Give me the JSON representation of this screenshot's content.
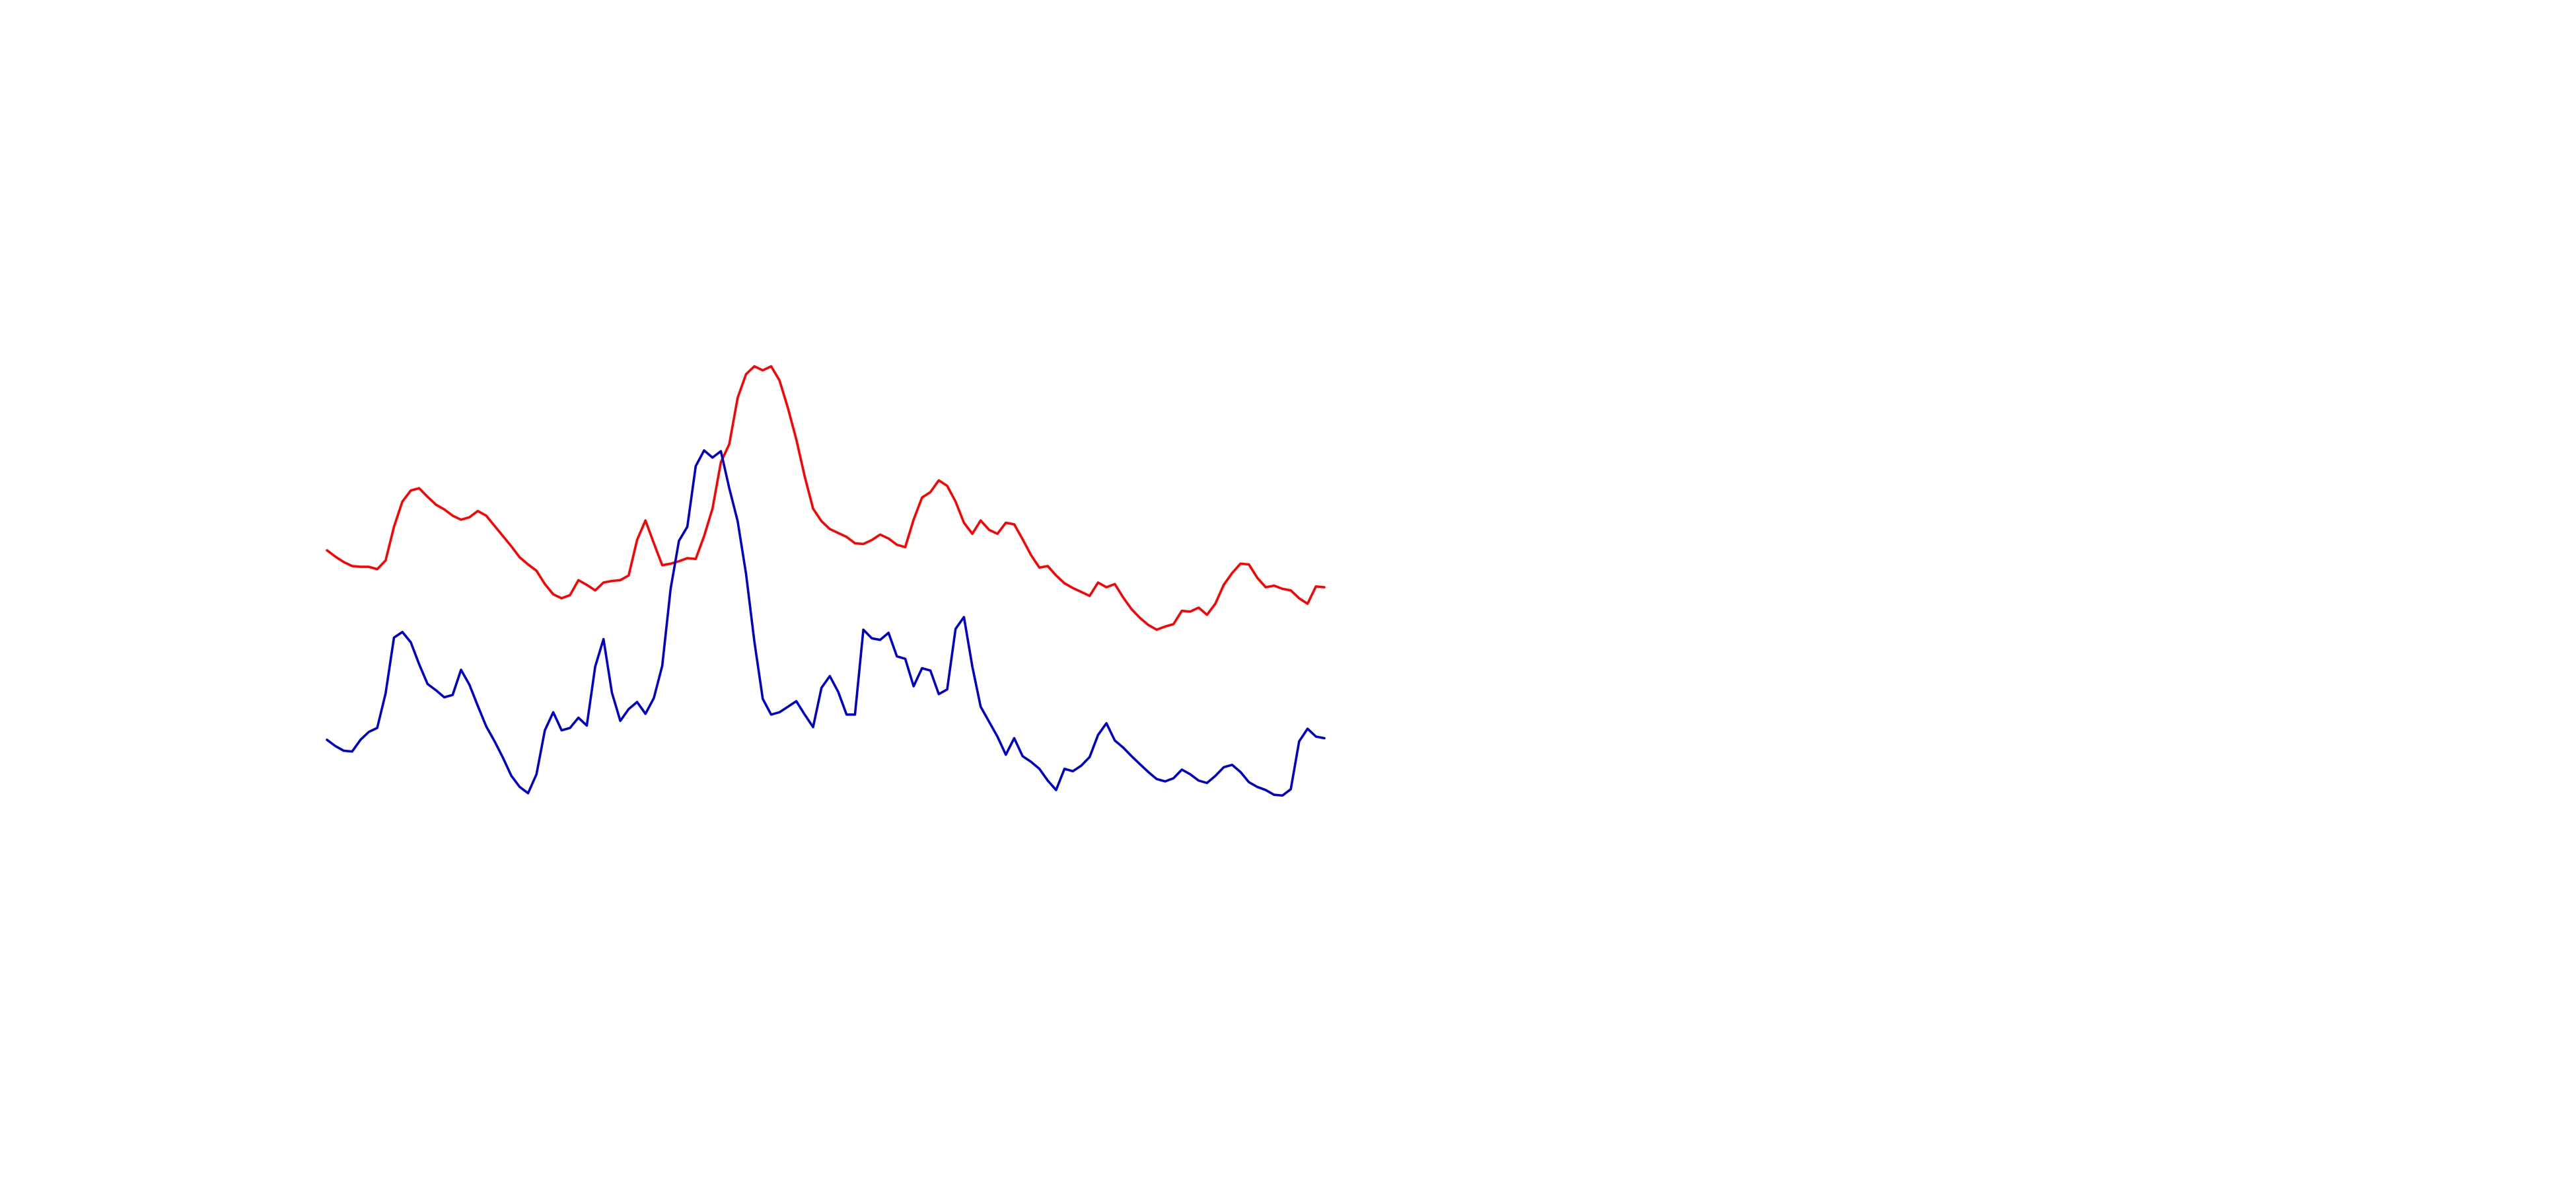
{
  "chart_data": {
    "type": "line",
    "title": "",
    "xlabel": "",
    "ylabel": "",
    "grid": false,
    "legend": "none",
    "xlim": [
      0,
      119
    ],
    "ylim": [
      0,
      100
    ],
    "series": [
      {
        "color": "#ff0000",
        "x": [
          0,
          1,
          2,
          3,
          4,
          5,
          6,
          7,
          8,
          9,
          10,
          11,
          12,
          13,
          14,
          15,
          16,
          17,
          18,
          19,
          20,
          21,
          22,
          23,
          24,
          25,
          26,
          27,
          28,
          29,
          30,
          31,
          32,
          33,
          34,
          35,
          36,
          37,
          38,
          39,
          40,
          41,
          42,
          43,
          44,
          45,
          46,
          47,
          48,
          49,
          50,
          51,
          52,
          53,
          54,
          55,
          56,
          57,
          58,
          59,
          60,
          61,
          62,
          63,
          64,
          65,
          66,
          67,
          68,
          69,
          70,
          71,
          72,
          73,
          74,
          75,
          76,
          77,
          78,
          79,
          80,
          81,
          82,
          83,
          84,
          85,
          86,
          87,
          88,
          89,
          90,
          91,
          92,
          93,
          94,
          95,
          96,
          97,
          98,
          99,
          100,
          101,
          102,
          103,
          104,
          105,
          106,
          107,
          108,
          109,
          110,
          111,
          112,
          113,
          114,
          115,
          116,
          117,
          118,
          119
        ],
        "values": [
          44.7,
          43.9,
          43.2,
          42.7,
          42.6,
          42.6,
          42.3,
          43.4,
          47.7,
          50.9,
          52.3,
          52.6,
          51.5,
          50.5,
          49.9,
          49.1,
          48.6,
          48.9,
          49.7,
          49.1,
          47.8,
          46.5,
          45.2,
          43.8,
          42.9,
          42.1,
          40.4,
          39.1,
          38.6,
          39.0,
          40.9,
          40.3,
          39.6,
          40.6,
          40.8,
          40.9,
          41.5,
          46.0,
          48.5,
          45.6,
          42.8,
          43.0,
          43.3,
          43.7,
          43.6,
          46.5,
          50.0,
          55.9,
          58.2,
          64.1,
          67.1,
          68.1,
          67.6,
          68.1,
          66.3,
          62.8,
          58.8,
          54.1,
          50.0,
          48.4,
          47.4,
          46.9,
          46.4,
          45.6,
          45.5,
          46.0,
          46.7,
          46.2,
          45.4,
          45.1,
          48.6,
          51.4,
          52.1,
          53.6,
          52.9,
          50.9,
          48.2,
          46.8,
          48.5,
          47.3,
          46.8,
          48.2,
          48.0,
          46.1,
          44.1,
          42.5,
          42.7,
          41.5,
          40.5,
          39.9,
          39.4,
          38.9,
          40.6,
          40.0,
          40.4,
          38.7,
          37.2,
          36.1,
          35.2,
          34.6,
          35.0,
          35.3,
          37.0,
          36.9,
          37.4,
          36.5,
          37.9,
          40.3,
          41.8,
          43.0,
          42.9,
          41.2,
          40.0,
          40.2,
          39.8,
          39.6,
          38.6,
          37.9,
          40.1,
          40.0
        ]
      },
      {
        "color": "#0000cc",
        "x": [
          0,
          1,
          2,
          3,
          4,
          5,
          6,
          7,
          8,
          9,
          10,
          11,
          12,
          13,
          14,
          15,
          16,
          17,
          18,
          19,
          20,
          21,
          22,
          23,
          24,
          25,
          26,
          27,
          28,
          29,
          30,
          31,
          32,
          33,
          34,
          35,
          36,
          37,
          38,
          39,
          40,
          41,
          42,
          43,
          44,
          45,
          46,
          47,
          48,
          49,
          50,
          51,
          52,
          53,
          54,
          55,
          56,
          57,
          58,
          59,
          60,
          61,
          62,
          63,
          64,
          65,
          66,
          67,
          68,
          69,
          70,
          71,
          72,
          73,
          74,
          75,
          76,
          77,
          78,
          79,
          80,
          81,
          82,
          83,
          84,
          85,
          86,
          87,
          88,
          89,
          90,
          91,
          92,
          93,
          94,
          95,
          96,
          97,
          98,
          99,
          100,
          101,
          102,
          103,
          104,
          105,
          106,
          107,
          108,
          109,
          110,
          111,
          112,
          113,
          114,
          115,
          116,
          117,
          118,
          119
        ],
        "values": [
          20.6,
          19.8,
          19.2,
          19.1,
          20.6,
          21.6,
          22.1,
          26.5,
          33.6,
          34.3,
          33.0,
          30.2,
          27.7,
          26.9,
          26.0,
          26.3,
          29.5,
          27.6,
          24.9,
          22.3,
          20.4,
          18.3,
          16.0,
          14.6,
          13.8,
          16.2,
          21.8,
          24.1,
          21.8,
          22.1,
          23.4,
          22.4,
          29.9,
          33.4,
          26.6,
          23.0,
          24.5,
          25.4,
          23.9,
          25.9,
          30.0,
          39.8,
          45.9,
          47.7,
          55.4,
          57.4,
          56.5,
          57.3,
          52.6,
          48.4,
          41.7,
          33.1,
          25.8,
          23.8,
          24.1,
          24.8,
          25.5,
          23.8,
          22.2,
          27.2,
          28.7,
          26.7,
          23.8,
          23.8,
          34.6,
          33.5,
          33.3,
          34.2,
          31.2,
          30.9,
          27.4,
          29.7,
          29.4,
          26.4,
          27.0,
          34.7,
          36.2,
          29.9,
          24.8,
          22.9,
          21.0,
          18.7,
          20.8,
          18.5,
          17.8,
          16.9,
          15.4,
          14.2,
          16.9,
          16.6,
          17.3,
          18.4,
          21.2,
          22.7,
          20.5,
          19.6,
          18.5,
          17.5,
          16.5,
          15.6,
          15.3,
          15.7,
          16.8,
          16.2,
          15.4,
          15.1,
          16.0,
          17.1,
          17.4,
          16.5,
          15.2,
          14.6,
          14.2,
          13.6,
          13.5,
          14.3,
          20.4,
          22.0,
          21.0,
          20.8
        ]
      }
    ]
  }
}
